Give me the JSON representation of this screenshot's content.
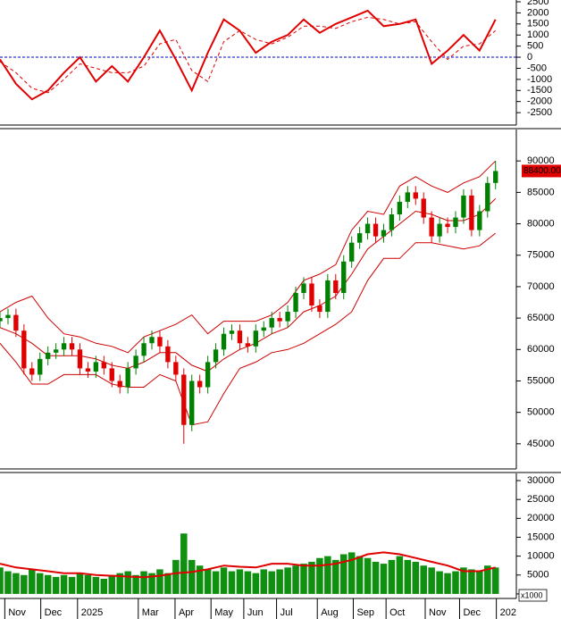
{
  "chart_data": [
    {
      "type": "line",
      "xlim": [
        0,
        64.6
      ],
      "ylim": [
        -3060,
        2580
      ],
      "yticks": [
        2500,
        2000,
        1500,
        1000,
        500,
        0,
        -500,
        -1000,
        -1500,
        -2000,
        -2500
      ],
      "reference_line": {
        "value": 0,
        "color": "#0000cc"
      },
      "series": [
        {
          "color": "#e00000",
          "dash": false,
          "x": [
            0,
            2,
            4,
            6,
            8,
            10,
            12,
            14,
            16,
            18,
            20,
            22,
            24,
            26,
            28,
            30,
            32,
            34,
            36,
            38,
            40,
            42,
            44,
            46,
            48,
            50,
            52,
            54,
            56,
            58,
            60,
            62
          ],
          "values": [
            -100,
            -1200,
            -1900,
            -1500,
            -700,
            0,
            -1100,
            -400,
            -1100,
            0,
            1200,
            -100,
            -1500,
            200,
            1700,
            1200,
            200,
            700,
            1000,
            1700,
            1100,
            1500,
            1800,
            2100,
            1400,
            1500,
            1700,
            -300,
            300,
            1000,
            300,
            1700
          ]
        },
        {
          "color": "#e00000",
          "dash": true,
          "x": [
            0,
            2,
            4,
            6,
            8,
            10,
            12,
            14,
            16,
            18,
            20,
            22,
            24,
            26,
            28,
            30,
            32,
            34,
            36,
            38,
            40,
            42,
            44,
            46,
            48,
            50,
            52,
            54,
            56,
            58,
            60,
            62
          ],
          "values": [
            -200,
            -700,
            -1400,
            -1600,
            -1000,
            -300,
            -500,
            -700,
            -700,
            -400,
            600,
            800,
            -600,
            -1100,
            700,
            1200,
            800,
            600,
            900,
            1400,
            1400,
            1300,
            1600,
            1800,
            1700,
            1500,
            1600,
            700,
            -100,
            500,
            600,
            1200
          ]
        }
      ]
    },
    {
      "type": "candlestick",
      "xlim": [
        0,
        64.6
      ],
      "ylim": [
        41000,
        95000
      ],
      "yticks": [
        45000,
        50000,
        55000,
        60000,
        65000,
        70000,
        75000,
        80000,
        85000,
        90000
      ],
      "up_color": "#008000",
      "down_color": "#e00000",
      "x": [
        0,
        1,
        2,
        3,
        4,
        5,
        6,
        7,
        8,
        9,
        10,
        11,
        12,
        13,
        14,
        15,
        16,
        17,
        18,
        19,
        20,
        21,
        22,
        23,
        24,
        25,
        26,
        27,
        28,
        29,
        30,
        31,
        32,
        33,
        34,
        35,
        36,
        37,
        38,
        39,
        40,
        41,
        42,
        43,
        44,
        45,
        46,
        47,
        48,
        49,
        50,
        51,
        52,
        53,
        54,
        55,
        56,
        57,
        58,
        59,
        60,
        61,
        62
      ],
      "open": [
        64500,
        65000,
        65500,
        63000,
        57000,
        56000,
        58500,
        59500,
        60000,
        61000,
        60000,
        57000,
        56500,
        58000,
        57000,
        55000,
        54000,
        57000,
        59000,
        61000,
        62000,
        60500,
        58000,
        56000,
        48000,
        55000,
        54000,
        58000,
        60000,
        62500,
        63000,
        61000,
        60500,
        63000,
        63500,
        65000,
        64500,
        66000,
        69000,
        70500,
        67000,
        66000,
        71000,
        69000,
        74000,
        77000,
        78500,
        80000,
        78000,
        79000,
        81500,
        83500,
        85000,
        84000,
        81000,
        78000,
        80000,
        79500,
        81000,
        84500,
        79000,
        82000,
        86500
      ],
      "high": [
        66000,
        66500,
        66500,
        64000,
        58000,
        59500,
        60500,
        61000,
        62000,
        62000,
        61000,
        58000,
        59000,
        59000,
        58000,
        56000,
        58000,
        60000,
        62000,
        63000,
        63000,
        61500,
        59000,
        57000,
        56000,
        56000,
        59000,
        61000,
        63500,
        64000,
        64000,
        62000,
        64000,
        64500,
        66000,
        66000,
        67000,
        70000,
        71500,
        71500,
        68000,
        72000,
        72000,
        75000,
        78000,
        79500,
        81000,
        81000,
        80000,
        82500,
        84500,
        86000,
        86000,
        85000,
        82000,
        81000,
        81000,
        82000,
        85500,
        85500,
        83000,
        87500,
        90000
      ],
      "low": [
        63500,
        64000,
        62000,
        56000,
        55000,
        55000,
        57500,
        58500,
        59000,
        59000,
        56000,
        55500,
        55500,
        56000,
        54000,
        53000,
        53000,
        56000,
        58000,
        60000,
        59500,
        57000,
        55000,
        45000,
        47000,
        53000,
        53000,
        57000,
        59000,
        61500,
        60000,
        59500,
        59500,
        62000,
        62500,
        63500,
        63500,
        65000,
        68000,
        66000,
        65000,
        65000,
        68000,
        68000,
        73000,
        76000,
        77500,
        77000,
        77000,
        78000,
        80500,
        82500,
        83000,
        80000,
        77000,
        77000,
        78500,
        78500,
        80000,
        78000,
        78000,
        81000,
        85500
      ],
      "close": [
        65000,
        65500,
        63000,
        57000,
        56000,
        58500,
        59500,
        60000,
        61000,
        60000,
        57000,
        56500,
        58000,
        57000,
        55000,
        54000,
        57000,
        59000,
        61000,
        62000,
        60500,
        58000,
        56000,
        48000,
        55000,
        54000,
        58000,
        60000,
        62500,
        63000,
        61000,
        60500,
        63000,
        63500,
        65000,
        64500,
        66000,
        69000,
        70500,
        67000,
        66000,
        71000,
        69000,
        74000,
        77000,
        78500,
        80000,
        78000,
        79000,
        81500,
        83500,
        85000,
        84000,
        81000,
        78000,
        80000,
        79500,
        81000,
        84500,
        79000,
        82000,
        86500,
        88400
      ],
      "last_price": {
        "value": 88400,
        "label": "88400.00",
        "color": "#e00000"
      },
      "series": [
        {
          "color": "#cc0000",
          "dash": false,
          "x": [
            0,
            2,
            4,
            6,
            8,
            10,
            12,
            14,
            16,
            18,
            20,
            22,
            24,
            26,
            28,
            30,
            32,
            34,
            36,
            38,
            40,
            42,
            44,
            46,
            48,
            50,
            52,
            54,
            56,
            58,
            60,
            62
          ],
          "values": [
            66000,
            67500,
            68500,
            65000,
            62500,
            62000,
            61000,
            60500,
            59500,
            62000,
            63000,
            64000,
            65500,
            62500,
            64500,
            64500,
            64500,
            65500,
            67500,
            71000,
            72000,
            73500,
            79000,
            82000,
            81500,
            86000,
            87500,
            86000,
            85000,
            86500,
            87500,
            90000
          ]
        },
        {
          "color": "#cc0000",
          "dash": false,
          "x": [
            0,
            2,
            4,
            6,
            8,
            10,
            12,
            14,
            16,
            18,
            20,
            22,
            24,
            26,
            28,
            30,
            32,
            34,
            36,
            38,
            40,
            42,
            44,
            46,
            48,
            50,
            52,
            54,
            56,
            58,
            60,
            62
          ],
          "values": [
            63500,
            62500,
            61000,
            59000,
            59000,
            59000,
            58500,
            57500,
            57000,
            58000,
            59500,
            59500,
            57500,
            56500,
            58500,
            60000,
            61000,
            62500,
            63500,
            66000,
            67000,
            68500,
            72000,
            76000,
            78000,
            80000,
            82000,
            81500,
            80500,
            80500,
            81500,
            84000
          ]
        },
        {
          "color": "#cc0000",
          "dash": false,
          "x": [
            0,
            2,
            4,
            6,
            8,
            10,
            12,
            14,
            16,
            18,
            20,
            22,
            24,
            26,
            28,
            30,
            32,
            34,
            36,
            38,
            40,
            42,
            44,
            46,
            48,
            50,
            52,
            54,
            56,
            58,
            60,
            62
          ],
          "values": [
            61000,
            58000,
            54500,
            54500,
            56000,
            56000,
            56000,
            54500,
            54000,
            54000,
            56000,
            55000,
            48000,
            48500,
            53000,
            57000,
            58000,
            59500,
            60000,
            61000,
            62500,
            64000,
            66000,
            71000,
            74500,
            74500,
            77000,
            77000,
            76500,
            76000,
            76500,
            78500
          ]
        }
      ]
    },
    {
      "type": "bar",
      "xlim": [
        0,
        64.6
      ],
      "ylim": [
        -1200,
        31900
      ],
      "yticks": [
        0,
        5000,
        10000,
        15000,
        20000,
        25000,
        30000
      ],
      "unit_label": "x1000",
      "color": "#109010",
      "x": [
        0,
        1,
        2,
        3,
        4,
        5,
        6,
        7,
        8,
        9,
        10,
        11,
        12,
        13,
        14,
        15,
        16,
        17,
        18,
        19,
        20,
        21,
        22,
        23,
        24,
        25,
        26,
        27,
        28,
        29,
        30,
        31,
        32,
        33,
        34,
        35,
        36,
        37,
        38,
        39,
        40,
        41,
        42,
        43,
        44,
        45,
        46,
        47,
        48,
        49,
        50,
        51,
        52,
        53,
        54,
        55,
        56,
        57,
        58,
        59,
        60,
        61,
        62
      ],
      "values": [
        7000,
        6000,
        5500,
        5000,
        6500,
        5500,
        5000,
        4500,
        5000,
        4500,
        5500,
        5000,
        4500,
        4000,
        5000,
        5500,
        6000,
        5000,
        6000,
        5500,
        6500,
        5500,
        9000,
        16000,
        9000,
        7500,
        6500,
        6000,
        7000,
        6000,
        6500,
        6000,
        5500,
        6500,
        6000,
        6500,
        7000,
        7500,
        8000,
        8500,
        9500,
        10000,
        9000,
        10500,
        11000,
        10000,
        9500,
        8500,
        8000,
        9000,
        10000,
        9000,
        8500,
        7500,
        7000,
        6000,
        5500,
        6000,
        7000,
        6500,
        6000,
        7500,
        7000
      ],
      "series": [
        {
          "color": "#e00000",
          "dash": false,
          "x": [
            0,
            2,
            4,
            6,
            8,
            10,
            12,
            14,
            16,
            18,
            20,
            22,
            24,
            26,
            28,
            30,
            32,
            34,
            36,
            38,
            40,
            42,
            44,
            46,
            48,
            50,
            52,
            54,
            56,
            58,
            60,
            62
          ],
          "values": [
            8000,
            7000,
            6500,
            6000,
            5500,
            5500,
            5000,
            4800,
            4600,
            4400,
            4800,
            5500,
            5800,
            6500,
            7500,
            7200,
            7000,
            8000,
            8000,
            7500,
            7500,
            8000,
            9000,
            10500,
            11000,
            10500,
            9500,
            8500,
            7500,
            6000,
            6000,
            7000
          ]
        }
      ],
      "xticks": [
        {
          "value": 0.6,
          "label": "Nov"
        },
        {
          "value": 5.1,
          "label": "Dec"
        },
        {
          "value": 9.7,
          "label": "2025"
        },
        {
          "value": 17.3,
          "label": "Mar"
        },
        {
          "value": 21.9,
          "label": "Apr"
        },
        {
          "value": 26.4,
          "label": "May"
        },
        {
          "value": 30.5,
          "label": "Jun"
        },
        {
          "value": 34.6,
          "label": "Jul"
        },
        {
          "value": 39.7,
          "label": "Aug"
        },
        {
          "value": 44.2,
          "label": "Sep"
        },
        {
          "value": 48.3,
          "label": "Oct"
        },
        {
          "value": 53.2,
          "label": "Nov"
        },
        {
          "value": 57.5,
          "label": "Dec"
        },
        {
          "value": 62.1,
          "label": "202"
        }
      ]
    }
  ]
}
